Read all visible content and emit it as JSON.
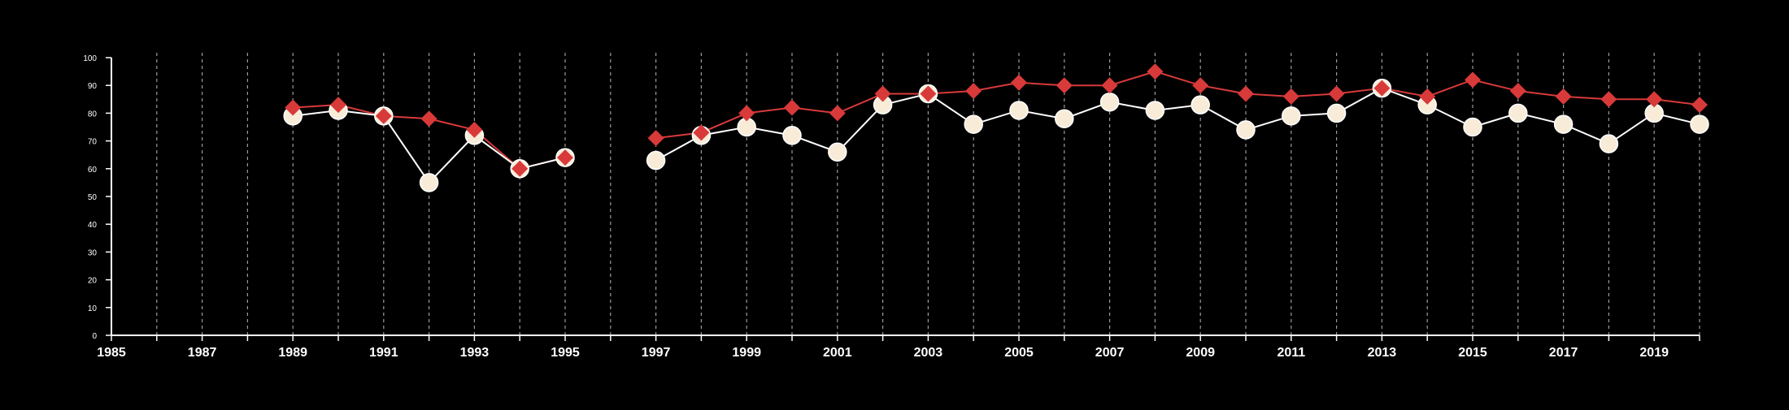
{
  "chart_data": {
    "type": "line",
    "title": "",
    "xlabel": "",
    "ylabel": "",
    "xlim": [
      1985,
      2020
    ],
    "ylim": [
      0,
      100
    ],
    "x_tick_labels": [
      1985,
      1987,
      1989,
      1991,
      1993,
      1995,
      1997,
      1999,
      2001,
      2003,
      2005,
      2007,
      2009,
      2011,
      2013,
      2015,
      2017,
      2019
    ],
    "y_tick_labels": [
      0,
      10,
      20,
      30,
      40,
      50,
      60,
      70,
      80,
      90,
      100
    ],
    "grid": "vertical dashed lines at each year",
    "series": [
      {
        "marker": "diamond",
        "color": "#d83a3a",
        "x": [
          1989,
          1990,
          1991,
          1992,
          1993,
          1994,
          1995,
          1996,
          1997,
          1998,
          1999,
          2000,
          2001,
          2002,
          2003,
          2004,
          2005,
          2006,
          2007,
          2008,
          2009,
          2010,
          2011,
          2012,
          2013,
          2014,
          2015,
          2016,
          2017,
          2018,
          2019,
          2020
        ],
        "values": [
          82,
          83,
          79,
          78,
          74,
          60,
          64,
          null,
          71,
          73,
          80,
          82,
          80,
          87,
          87,
          88,
          91,
          90,
          90,
          95,
          90,
          87,
          86,
          87,
          89,
          86,
          92,
          88,
          86,
          85,
          85,
          83
        ]
      },
      {
        "marker": "circle",
        "color": "#f8ecd8",
        "x": [
          1989,
          1990,
          1991,
          1992,
          1993,
          1994,
          1995,
          1996,
          1997,
          1998,
          1999,
          2000,
          2001,
          2002,
          2003,
          2004,
          2005,
          2006,
          2007,
          2008,
          2009,
          2010,
          2011,
          2012,
          2013,
          2014,
          2015,
          2016,
          2017,
          2018,
          2019,
          2020
        ],
        "values": [
          79,
          81,
          79,
          55,
          72,
          60,
          64,
          null,
          63,
          72,
          75,
          72,
          66,
          83,
          87,
          76,
          81,
          78,
          84,
          81,
          83,
          74,
          79,
          80,
          89,
          83,
          75,
          80,
          76,
          69,
          80,
          76
        ]
      }
    ]
  }
}
